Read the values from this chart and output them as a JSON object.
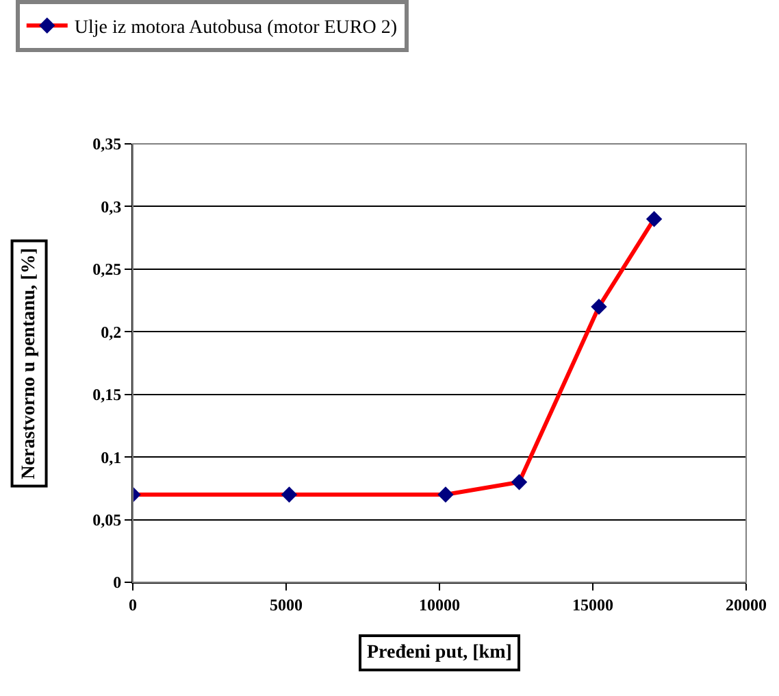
{
  "chart_data": {
    "type": "line",
    "xlabel": "Pređeni put, [km]",
    "ylabel": "Nerastvorno u pentanu, [%]",
    "x": [
      0,
      5100,
      10200,
      12600,
      15200,
      17000
    ],
    "series": [
      {
        "name": "Ulje iz motora Autobusa (motor EURO 2)",
        "color": "#ff0000",
        "values": [
          0.07,
          0.07,
          0.07,
          0.08,
          0.22,
          0.29
        ]
      }
    ],
    "xlim": [
      0,
      20000
    ],
    "xticks": [
      0,
      5000,
      10000,
      15000,
      20000
    ],
    "ylim": [
      0,
      0.35
    ],
    "yticks": [
      0,
      {
        "value": 0.05,
        "label": "0,05"
      },
      {
        "value": 0.1,
        "label": "0,1"
      },
      {
        "value": 0.15,
        "label": "0,15"
      },
      {
        "value": 0.2,
        "label": "0,2"
      },
      {
        "value": 0.25,
        "label": "0,25"
      },
      {
        "value": 0.3,
        "label": "0,3"
      },
      {
        "value": 0.35,
        "label": "0,35"
      }
    ],
    "grid": "y",
    "legend": "top",
    "marker": "diamond",
    "line_style": "solid"
  }
}
